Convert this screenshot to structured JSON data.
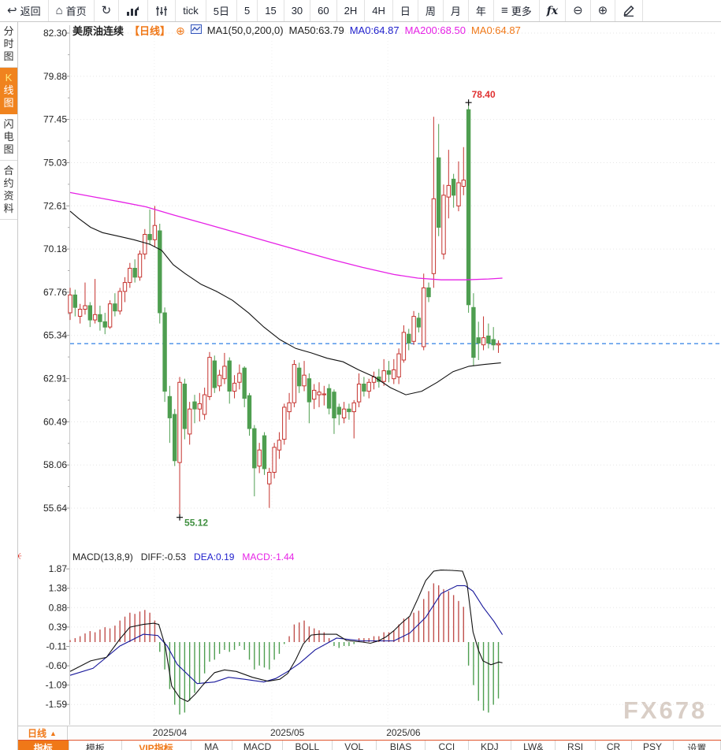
{
  "toolbar": {
    "items": [
      {
        "name": "back",
        "label": "返回",
        "icon": "back-arrow-icon"
      },
      {
        "name": "home",
        "label": "首页",
        "icon": "home-icon"
      },
      {
        "name": "refresh",
        "icon": "refresh-icon"
      },
      {
        "name": "bar-chart-mode",
        "icon": "bar-chart-icon"
      },
      {
        "name": "candle-chart-mode",
        "icon": "candle-chart-icon"
      },
      {
        "name": "tick",
        "label": "tick"
      },
      {
        "name": "5d",
        "label": "5日"
      },
      {
        "name": "m5",
        "label": "5"
      },
      {
        "name": "m15",
        "label": "15"
      },
      {
        "name": "m30",
        "label": "30"
      },
      {
        "name": "m60",
        "label": "60"
      },
      {
        "name": "h2",
        "label": "2H"
      },
      {
        "name": "h4",
        "label": "4H"
      },
      {
        "name": "day",
        "label": "日"
      },
      {
        "name": "week",
        "label": "周"
      },
      {
        "name": "month",
        "label": "月"
      },
      {
        "name": "year",
        "label": "年"
      },
      {
        "name": "more",
        "label": "更多",
        "icon": "menu-icon"
      },
      {
        "name": "fx",
        "label": "fx"
      },
      {
        "name": "zoom-out",
        "icon": "zoom-out-icon"
      },
      {
        "name": "zoom-in",
        "icon": "zoom-in-icon"
      },
      {
        "name": "draw",
        "icon": "pencil-icon"
      }
    ]
  },
  "sidebar": {
    "items": [
      {
        "label": "分时图",
        "active": false
      },
      {
        "label": "K线图",
        "active": true
      },
      {
        "label": "闪电图",
        "active": false
      },
      {
        "label": "合约资料",
        "active": false
      }
    ]
  },
  "chart_header": {
    "title": "美原油连续",
    "period_tag": "【日线】",
    "ma_settings": "MA1(50,0,200,0)",
    "ma50": "MA50:63.79",
    "ma0_blue": "MA0:64.87",
    "ma200": "MA200:68.50",
    "ma0_orange": "MA0:64.87"
  },
  "macd_header": {
    "formula": "MACD(13,8,9)",
    "diff": "DIFF:-0.53",
    "dea": "DEA:0.19",
    "macd": "MACD:-1.44"
  },
  "xaxis": {
    "period_label": "日线"
  },
  "bottom_tabs": [
    {
      "label": "指标",
      "style": "active"
    },
    {
      "label": "模板",
      "style": ""
    },
    {
      "label": "VIP指标",
      "style": "vip"
    },
    {
      "label": "MA",
      "style": ""
    },
    {
      "label": "MACD",
      "style": ""
    },
    {
      "label": "BOLL",
      "style": ""
    },
    {
      "label": "VOL",
      "style": ""
    },
    {
      "label": "BIAS",
      "style": ""
    },
    {
      "label": "CCI",
      "style": ""
    },
    {
      "label": "KDJ",
      "style": ""
    },
    {
      "label": "LW&",
      "style": ""
    },
    {
      "label": "RSI",
      "style": ""
    },
    {
      "label": "CR",
      "style": ""
    },
    {
      "label": "PSY",
      "style": ""
    },
    {
      "label": "设置",
      "style": ""
    }
  ],
  "watermark": "FX678",
  "colors": {
    "up": "#C5322E",
    "down": "#4E9E50",
    "ma50": "#111111",
    "ma200": "#E620E6",
    "diff": "#111111",
    "dea": "#16169A",
    "hist_up": "#C0504D",
    "hist_down": "#4E9E50",
    "last_price_line": "#1B74E4",
    "grid": "#e5e5e5",
    "axis": "#c9c9c9",
    "high_label": "#E03030",
    "low_label": "#3F8F3F",
    "accent_orange": "#F07818"
  },
  "chart_data": {
    "type": "candlestick",
    "title": "美原油连续 日线 (WTI crude continuous, daily)",
    "price_yticks": [
      "82.30",
      "79.88",
      "77.45",
      "75.03",
      "72.61",
      "70.18",
      "67.76",
      "65.34",
      "62.91",
      "60.49",
      "58.06",
      "55.64"
    ],
    "macd_yticks": [
      "1.87",
      "1.38",
      "0.88",
      "0.39",
      "-0.11",
      "-0.60",
      "-1.09",
      "-1.59"
    ],
    "last_price": 64.87,
    "high_annotation": {
      "index": 80,
      "price": 78.4,
      "label": "78.40"
    },
    "low_annotation": {
      "index": 22,
      "price": 55.12,
      "label": "55.12"
    },
    "x_labels": [
      {
        "label": "2025/04",
        "i": 16.9
      },
      {
        "label": "2025/05",
        "i": 40.5
      },
      {
        "label": "2025/06",
        "i": 63.8
      }
    ],
    "candles": [
      [
        66.6,
        68.0,
        66.2,
        67.6
      ],
      [
        67.6,
        67.9,
        66.4,
        66.9
      ],
      [
        66.4,
        67.1,
        66.0,
        66.8
      ],
      [
        66.8,
        68.3,
        66.5,
        67.0
      ],
      [
        67.0,
        67.2,
        65.8,
        66.2
      ],
      [
        66.2,
        68.5,
        66.0,
        66.5
      ],
      [
        66.5,
        67.0,
        65.6,
        66.1
      ],
      [
        66.1,
        66.6,
        65.4,
        65.8
      ],
      [
        65.8,
        67.3,
        65.7,
        67.1
      ],
      [
        67.1,
        67.7,
        66.4,
        66.7
      ],
      [
        66.7,
        68.0,
        66.5,
        67.8
      ],
      [
        67.8,
        68.6,
        67.2,
        68.3
      ],
      [
        68.3,
        69.4,
        68.0,
        69.1
      ],
      [
        69.1,
        69.6,
        68.3,
        68.6
      ],
      [
        68.6,
        70.1,
        68.4,
        69.9
      ],
      [
        69.9,
        71.3,
        69.6,
        71.0
      ],
      [
        71.0,
        72.4,
        70.4,
        70.7
      ],
      [
        70.7,
        72.6,
        70.3,
        71.5
      ],
      [
        71.2,
        71.6,
        66.0,
        66.6
      ],
      [
        66.6,
        66.9,
        61.6,
        62.2
      ],
      [
        61.9,
        62.5,
        59.3,
        60.7
      ],
      [
        60.9,
        61.2,
        58.0,
        58.3
      ],
      [
        58.2,
        63.0,
        55.12,
        62.7
      ],
      [
        62.6,
        62.9,
        59.5,
        60.1
      ],
      [
        59.8,
        61.6,
        59.2,
        61.2
      ],
      [
        61.6,
        62.0,
        60.4,
        61.2
      ],
      [
        61.2,
        62.1,
        60.5,
        61.5
      ],
      [
        60.9,
        62.4,
        60.6,
        62.0
      ],
      [
        61.9,
        64.4,
        61.7,
        64.1
      ],
      [
        63.9,
        64.2,
        62.1,
        62.4
      ],
      [
        62.5,
        63.4,
        62.2,
        63.1
      ],
      [
        62.9,
        64.35,
        62.6,
        63.6
      ],
      [
        63.9,
        64.1,
        61.5,
        62.2
      ],
      [
        62.2,
        63.1,
        61.8,
        62.65
      ],
      [
        62.7,
        63.7,
        62.3,
        63.2
      ],
      [
        63.5,
        63.6,
        61.3,
        61.8
      ],
      [
        61.95,
        62.1,
        59.7,
        60.1
      ],
      [
        60.1,
        60.3,
        56.3,
        57.9
      ],
      [
        58.0,
        59.3,
        57.6,
        58.9
      ],
      [
        59.7,
        59.9,
        57.5,
        57.85
      ],
      [
        57.0,
        57.9,
        55.65,
        57.65
      ],
      [
        57.65,
        59.3,
        57.3,
        59.05
      ],
      [
        58.9,
        59.9,
        58.4,
        59.45
      ],
      [
        59.5,
        61.5,
        59.2,
        61.3
      ],
      [
        61.05,
        62.1,
        60.6,
        61.55
      ],
      [
        61.55,
        63.95,
        61.3,
        63.7
      ],
      [
        63.5,
        63.8,
        62.1,
        62.5
      ],
      [
        62.5,
        63.9,
        62.2,
        63.1
      ],
      [
        62.9,
        63.2,
        60.4,
        61.6
      ],
      [
        61.75,
        62.6,
        61.2,
        62.25
      ],
      [
        62.0,
        62.7,
        61.3,
        62.15
      ],
      [
        62.0,
        62.5,
        61.4,
        62.05
      ],
      [
        62.35,
        62.6,
        60.9,
        61.25
      ],
      [
        62.15,
        62.3,
        59.8,
        60.7
      ],
      [
        61.3,
        61.5,
        60.3,
        60.9
      ],
      [
        60.7,
        61.6,
        60.4,
        61.2
      ],
      [
        61.2,
        61.5,
        60.6,
        61.05
      ],
      [
        61.05,
        61.7,
        59.55,
        61.55
      ],
      [
        61.6,
        63.2,
        61.3,
        62.6
      ],
      [
        62.6,
        63.0,
        61.9,
        62.2
      ],
      [
        62.2,
        62.9,
        61.8,
        62.7
      ],
      [
        62.7,
        63.3,
        62.3,
        63.0
      ],
      [
        63.0,
        63.45,
        62.4,
        62.75
      ],
      [
        62.75,
        64.0,
        62.5,
        63.35
      ],
      [
        63.35,
        63.9,
        62.7,
        63.15
      ],
      [
        62.9,
        64.0,
        62.6,
        63.4
      ],
      [
        63.0,
        64.6,
        62.6,
        64.3
      ],
      [
        63.95,
        65.9,
        63.8,
        65.5
      ],
      [
        65.4,
        65.7,
        64.5,
        64.9
      ],
      [
        65.0,
        66.7,
        64.8,
        66.4
      ],
      [
        66.3,
        66.6,
        65.5,
        65.8
      ],
      [
        64.7,
        68.8,
        64.5,
        68.0
      ],
      [
        68.0,
        68.3,
        67.2,
        67.5
      ],
      [
        68.8,
        77.6,
        68.0,
        73.0
      ],
      [
        75.3,
        77.2,
        70.9,
        71.4
      ],
      [
        69.9,
        73.8,
        69.6,
        73.2
      ],
      [
        73.1,
        75.75,
        71.9,
        73.75
      ],
      [
        74.1,
        74.4,
        72.5,
        73.2
      ],
      [
        72.6,
        75.1,
        72.3,
        73.9
      ],
      [
        73.7,
        75.9,
        73.2,
        74.05
      ],
      [
        78.0,
        78.4,
        66.6,
        67.05
      ],
      [
        66.9,
        67.7,
        63.6,
        64.1
      ],
      [
        65.2,
        66.1,
        63.95,
        64.9
      ],
      [
        64.8,
        66.4,
        64.5,
        65.2
      ],
      [
        65.3,
        66.0,
        64.6,
        64.9
      ],
      [
        65.1,
        65.8,
        64.5,
        64.8
      ],
      [
        64.8,
        65.05,
        64.35,
        64.87
      ]
    ],
    "ma50_points": [
      [
        0,
        72.3
      ],
      [
        1.7,
        71.9
      ],
      [
        4.1,
        71.4
      ],
      [
        6.5,
        71.1
      ],
      [
        9.7,
        70.9
      ],
      [
        12.8,
        70.7
      ],
      [
        16,
        70.45
      ],
      [
        18.4,
        70.1
      ],
      [
        20.7,
        69.3
      ],
      [
        23.1,
        68.8
      ],
      [
        26.3,
        68.2
      ],
      [
        29.4,
        67.8
      ],
      [
        32.6,
        67.3
      ],
      [
        35.8,
        66.6
      ],
      [
        38.9,
        65.8
      ],
      [
        42.1,
        65.1
      ],
      [
        45.3,
        64.6
      ],
      [
        48.4,
        64.35
      ],
      [
        51.6,
        64.05
      ],
      [
        54.8,
        63.85
      ],
      [
        57.9,
        63.4
      ],
      [
        61.1,
        63.0
      ],
      [
        64.3,
        62.4
      ],
      [
        67.4,
        62.0
      ],
      [
        70.6,
        62.2
      ],
      [
        73.7,
        62.7
      ],
      [
        76.9,
        63.3
      ],
      [
        80.1,
        63.6
      ],
      [
        83.2,
        63.7
      ],
      [
        86.5,
        63.79
      ]
    ],
    "ma200_points": [
      [
        0,
        73.35
      ],
      [
        4.9,
        73.1
      ],
      [
        9.7,
        72.85
      ],
      [
        15.2,
        72.55
      ],
      [
        20.7,
        72.1
      ],
      [
        27.1,
        71.6
      ],
      [
        33.4,
        71.1
      ],
      [
        39.7,
        70.6
      ],
      [
        46.0,
        70.1
      ],
      [
        52.4,
        69.6
      ],
      [
        58.7,
        69.15
      ],
      [
        65.0,
        68.75
      ],
      [
        69.8,
        68.55
      ],
      [
        74.5,
        68.45
      ],
      [
        79.3,
        68.45
      ],
      [
        84.0,
        68.5
      ],
      [
        86.8,
        68.55
      ]
    ],
    "macd_histogram": [
      0.05,
      0.1,
      0.15,
      0.22,
      0.28,
      0.25,
      0.32,
      0.38,
      0.35,
      0.42,
      0.55,
      0.65,
      0.75,
      0.72,
      0.78,
      0.82,
      0.75,
      0.55,
      -0.25,
      -0.7,
      -1.2,
      -1.6,
      -1.85,
      -1.8,
      -1.5,
      -1.3,
      -1.05,
      -0.8,
      -0.5,
      -0.45,
      -0.3,
      -0.2,
      -0.25,
      -0.2,
      -0.1,
      -0.2,
      -0.45,
      -0.7,
      -0.6,
      -0.65,
      -0.7,
      -0.45,
      -0.3,
      -0.05,
      0.15,
      0.45,
      0.5,
      0.55,
      0.4,
      0.35,
      0.3,
      0.25,
      0.1,
      -0.1,
      -0.15,
      -0.1,
      -0.1,
      -0.05,
      0.1,
      0.1,
      0.1,
      0.15,
      0.15,
      0.25,
      0.25,
      0.3,
      0.45,
      0.6,
      0.65,
      0.75,
      0.8,
      1.1,
      1.3,
      1.5,
      1.45,
      1.35,
      1.3,
      1.2,
      1.05,
      0.9,
      -0.6,
      -1.1,
      -1.5,
      -1.75,
      -1.8,
      -1.6,
      -1.44
    ],
    "diff_points": [
      [
        0,
        -0.75
      ],
      [
        4.1,
        -0.48
      ],
      [
        7.3,
        -0.39
      ],
      [
        10,
        0.08
      ],
      [
        12,
        0.38
      ],
      [
        14.7,
        0.45
      ],
      [
        16.8,
        0.48
      ],
      [
        17.8,
        0.45
      ],
      [
        19.1,
        -0.1
      ],
      [
        20.4,
        -1.12
      ],
      [
        22,
        -1.42
      ],
      [
        23.6,
        -1.52
      ],
      [
        25.2,
        -1.32
      ],
      [
        26.7,
        -1.09
      ],
      [
        29,
        -0.78
      ],
      [
        31,
        -0.71
      ],
      [
        33.4,
        -0.75
      ],
      [
        36.6,
        -0.9
      ],
      [
        39.7,
        -1.0
      ],
      [
        42.1,
        -0.95
      ],
      [
        43.7,
        -0.8
      ],
      [
        45.3,
        -0.45
      ],
      [
        46.8,
        -0.05
      ],
      [
        48.4,
        0.18
      ],
      [
        50,
        0.2
      ],
      [
        53.5,
        0.2
      ],
      [
        55.5,
        0.04
      ],
      [
        58.7,
        0.0
      ],
      [
        60.3,
        -0.03
      ],
      [
        61.9,
        0.03
      ],
      [
        63.4,
        0.13
      ],
      [
        65,
        0.29
      ],
      [
        66.6,
        0.49
      ],
      [
        68.2,
        0.66
      ],
      [
        69.8,
        1.1
      ],
      [
        71.4,
        1.57
      ],
      [
        73,
        1.81
      ],
      [
        74.5,
        1.84
      ],
      [
        76.6,
        1.83
      ],
      [
        78.8,
        1.81
      ],
      [
        79.7,
        1.5
      ],
      [
        80.9,
        0.26
      ],
      [
        82,
        -0.21
      ],
      [
        82.9,
        -0.48
      ],
      [
        84.5,
        -0.58
      ],
      [
        86.1,
        -0.51
      ],
      [
        86.8,
        -0.53
      ]
    ],
    "dea_points": [
      [
        0,
        -0.85
      ],
      [
        4.6,
        -0.67
      ],
      [
        10,
        -0.1
      ],
      [
        14.7,
        0.2
      ],
      [
        17.6,
        0.17
      ],
      [
        19.5,
        -0.1
      ],
      [
        21.5,
        -0.57
      ],
      [
        25.5,
        -1.06
      ],
      [
        29,
        -1.02
      ],
      [
        31.8,
        -0.9
      ],
      [
        35,
        -0.95
      ],
      [
        38.9,
        -1.02
      ],
      [
        41.3,
        -0.93
      ],
      [
        43.7,
        -0.75
      ],
      [
        46.1,
        -0.54
      ],
      [
        49.2,
        -0.2
      ],
      [
        53.5,
        0.1
      ],
      [
        58.7,
        0.03
      ],
      [
        65,
        0.03
      ],
      [
        68.2,
        0.23
      ],
      [
        71.4,
        0.63
      ],
      [
        74.5,
        1.24
      ],
      [
        77.7,
        1.44
      ],
      [
        79.3,
        1.44
      ],
      [
        80.9,
        1.3
      ],
      [
        82.9,
        0.9
      ],
      [
        85.1,
        0.53
      ],
      [
        86.8,
        0.19
      ]
    ]
  }
}
